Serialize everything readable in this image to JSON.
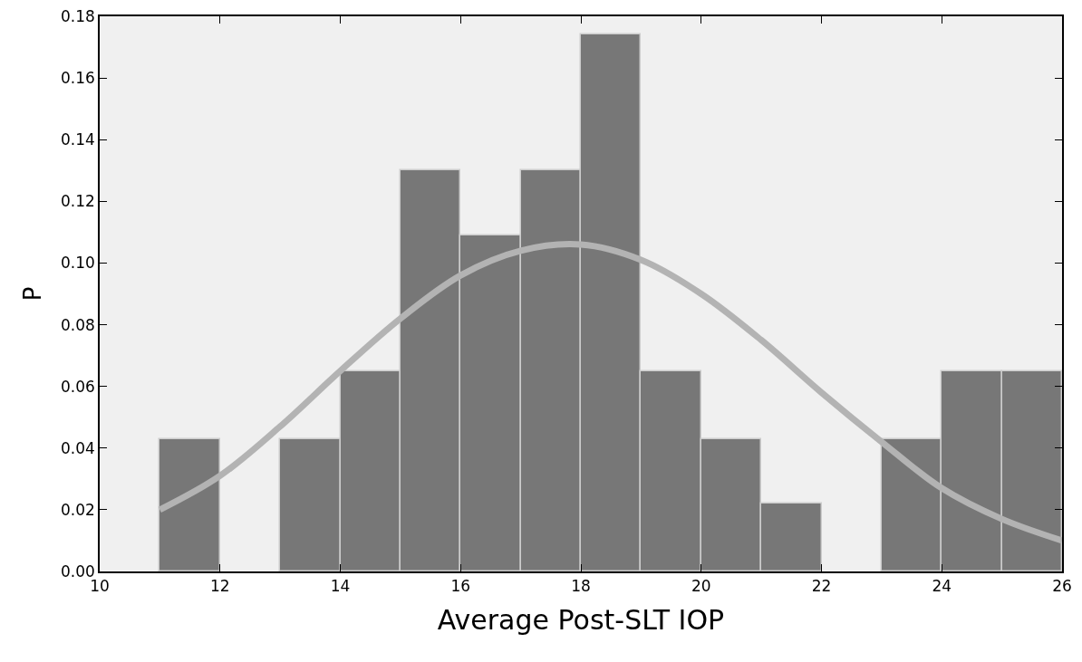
{
  "chart_data": {
    "type": "histogram",
    "xlabel": "Average Post-SLT IOP",
    "ylabel": "P",
    "bins": [
      11,
      12,
      13,
      14,
      15,
      16,
      17,
      18,
      19,
      20,
      21,
      22,
      23,
      24,
      25,
      26
    ],
    "values": [
      0.043,
      0,
      0.043,
      0.065,
      0.13,
      0.109,
      0.13,
      0.174,
      0.065,
      0.043,
      0.022,
      0,
      0.043,
      0.065,
      0.065
    ],
    "color": "#777777",
    "series": [
      {
        "type": "line",
        "color": "#b3b3b3",
        "x": [
          11,
          12,
          13,
          14,
          15,
          16,
          17,
          18,
          19,
          20,
          21,
          22,
          23,
          24,
          25,
          26
        ],
        "values": [
          0.02,
          0.031,
          0.047,
          0.065,
          0.082,
          0.096,
          0.104,
          0.106,
          0.101,
          0.09,
          0.075,
          0.058,
          0.042,
          0.027,
          0.017,
          0.01
        ]
      }
    ],
    "xlim": [
      10,
      26
    ],
    "xticks": [
      10,
      12,
      14,
      16,
      18,
      20,
      22,
      24,
      26
    ],
    "ylim": [
      0,
      0.18
    ],
    "yticks": [
      {
        "value": 0,
        "label": "0.00"
      },
      {
        "value": 0.02,
        "label": "0.02"
      },
      {
        "value": 0.04,
        "label": "0.04"
      },
      {
        "value": 0.06,
        "label": "0.06"
      },
      {
        "value": 0.08,
        "label": "0.08"
      },
      {
        "value": 0.1,
        "label": "0.10"
      },
      {
        "value": 0.12,
        "label": "0.12"
      },
      {
        "value": 0.14,
        "label": "0.14"
      },
      {
        "value": 0.16,
        "label": "0.16"
      },
      {
        "value": 0.18,
        "label": "0.18"
      }
    ]
  }
}
